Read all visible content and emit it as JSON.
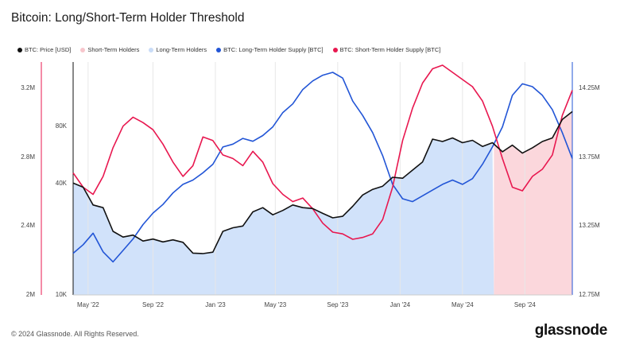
{
  "title": "Bitcoin: Long/Short-Term Holder Threshold",
  "legend": [
    {
      "label": "BTC: Price [USD]",
      "color": "#111111"
    },
    {
      "label": "Short-Term Holders",
      "color": "#f7c6cc"
    },
    {
      "label": "Long-Term Holders",
      "color": "#c9dcf7"
    },
    {
      "label": "BTC: Long-Term Holder Supply [BTC]",
      "color": "#2255d6"
    },
    {
      "label": "BTC: Short-Term Holder Supply [BTC]",
      "color": "#e8174f"
    }
  ],
  "footer": "© 2024 Glassnode. All Rights Reserved.",
  "brand": "glassnode",
  "chart_data": {
    "type": "line",
    "x_ticks": [
      "May '22",
      "Sep '22",
      "Jan '23",
      "May '23",
      "Sep '23",
      "Jan '24",
      "May '24",
      "Sep '24"
    ],
    "y_left_outer_ticks": [
      "3.2M",
      "2.8M",
      "2.4M",
      "2M"
    ],
    "y_left_inner_ticks": [
      "80K",
      "40K",
      "10K"
    ],
    "y_right_ticks": [
      "14.25M",
      "13.75M",
      "13.25M",
      "12.75M"
    ],
    "y_right_range": [
      12.75,
      14.25
    ],
    "y_left_outer_range": [
      2.0,
      3.2
    ],
    "y_price_log_range": [
      10000,
      80000
    ],
    "y_units": {
      "supply": "M BTC",
      "price": "USD"
    },
    "background_regions": [
      {
        "name": "Long-Term Holders",
        "from": 0.0,
        "to": 0.843,
        "color": "#cfe0fa"
      },
      {
        "name": "Short-Term Holders",
        "from": 0.843,
        "to": 1.0,
        "color": "#fbd5da"
      }
    ],
    "series": [
      {
        "name": "BTC: Price [USD]",
        "color": "#111111",
        "axis": "price",
        "values": [
          [
            0.0,
            40000
          ],
          [
            0.02,
            38000
          ],
          [
            0.04,
            30500
          ],
          [
            0.06,
            29500
          ],
          [
            0.08,
            22000
          ],
          [
            0.1,
            20500
          ],
          [
            0.12,
            21000
          ],
          [
            0.14,
            19500
          ],
          [
            0.16,
            20000
          ],
          [
            0.18,
            19300
          ],
          [
            0.2,
            19800
          ],
          [
            0.22,
            19200
          ],
          [
            0.24,
            16800
          ],
          [
            0.26,
            16700
          ],
          [
            0.28,
            17000
          ],
          [
            0.3,
            22000
          ],
          [
            0.32,
            23000
          ],
          [
            0.34,
            23500
          ],
          [
            0.36,
            28000
          ],
          [
            0.38,
            29500
          ],
          [
            0.4,
            27000
          ],
          [
            0.42,
            28500
          ],
          [
            0.44,
            30500
          ],
          [
            0.46,
            29500
          ],
          [
            0.48,
            29200
          ],
          [
            0.5,
            27500
          ],
          [
            0.52,
            26000
          ],
          [
            0.54,
            26500
          ],
          [
            0.56,
            30000
          ],
          [
            0.58,
            34500
          ],
          [
            0.6,
            37000
          ],
          [
            0.62,
            38500
          ],
          [
            0.64,
            43000
          ],
          [
            0.66,
            42500
          ],
          [
            0.68,
            47000
          ],
          [
            0.7,
            52000
          ],
          [
            0.72,
            69000
          ],
          [
            0.74,
            67000
          ],
          [
            0.76,
            70000
          ],
          [
            0.78,
            66000
          ],
          [
            0.8,
            68000
          ],
          [
            0.82,
            63000
          ],
          [
            0.84,
            66000
          ],
          [
            0.86,
            59000
          ],
          [
            0.88,
            64000
          ],
          [
            0.9,
            58000
          ],
          [
            0.92,
            62000
          ],
          [
            0.94,
            67000
          ],
          [
            0.96,
            70000
          ],
          [
            0.98,
            88000
          ],
          [
            1.0,
            97000
          ]
        ]
      },
      {
        "name": "BTC: Long-Term Holder Supply [BTC]",
        "color": "#2255d6",
        "axis": "supply",
        "values": [
          [
            0.0,
            13.04
          ],
          [
            0.02,
            13.1
          ],
          [
            0.04,
            13.18
          ],
          [
            0.06,
            13.05
          ],
          [
            0.08,
            12.98
          ],
          [
            0.1,
            13.06
          ],
          [
            0.12,
            13.14
          ],
          [
            0.14,
            13.24
          ],
          [
            0.16,
            13.32
          ],
          [
            0.18,
            13.38
          ],
          [
            0.2,
            13.46
          ],
          [
            0.22,
            13.52
          ],
          [
            0.24,
            13.55
          ],
          [
            0.26,
            13.6
          ],
          [
            0.28,
            13.66
          ],
          [
            0.3,
            13.78
          ],
          [
            0.32,
            13.8
          ],
          [
            0.34,
            13.84
          ],
          [
            0.36,
            13.82
          ],
          [
            0.38,
            13.86
          ],
          [
            0.4,
            13.92
          ],
          [
            0.42,
            14.02
          ],
          [
            0.44,
            14.08
          ],
          [
            0.46,
            14.18
          ],
          [
            0.48,
            14.24
          ],
          [
            0.5,
            14.28
          ],
          [
            0.52,
            14.3
          ],
          [
            0.54,
            14.26
          ],
          [
            0.56,
            14.1
          ],
          [
            0.58,
            14.0
          ],
          [
            0.6,
            13.88
          ],
          [
            0.62,
            13.72
          ],
          [
            0.64,
            13.52
          ],
          [
            0.66,
            13.42
          ],
          [
            0.68,
            13.4
          ],
          [
            0.7,
            13.44
          ],
          [
            0.72,
            13.48
          ],
          [
            0.74,
            13.52
          ],
          [
            0.76,
            13.55
          ],
          [
            0.78,
            13.52
          ],
          [
            0.8,
            13.56
          ],
          [
            0.82,
            13.66
          ],
          [
            0.84,
            13.78
          ],
          [
            0.86,
            13.92
          ],
          [
            0.88,
            14.14
          ],
          [
            0.9,
            14.22
          ],
          [
            0.92,
            14.2
          ],
          [
            0.94,
            14.14
          ],
          [
            0.96,
            14.04
          ],
          [
            0.98,
            13.88
          ],
          [
            1.0,
            13.7
          ]
        ]
      },
      {
        "name": "BTC: Short-Term Holder Supply [BTC]",
        "color": "#e8174f",
        "axis": "left_outer",
        "values": [
          [
            0.0,
            2.68
          ],
          [
            0.02,
            2.6
          ],
          [
            0.04,
            2.56
          ],
          [
            0.06,
            2.66
          ],
          [
            0.08,
            2.82
          ],
          [
            0.1,
            2.94
          ],
          [
            0.12,
            2.99
          ],
          [
            0.14,
            2.96
          ],
          [
            0.16,
            2.92
          ],
          [
            0.18,
            2.84
          ],
          [
            0.2,
            2.74
          ],
          [
            0.22,
            2.66
          ],
          [
            0.24,
            2.72
          ],
          [
            0.26,
            2.88
          ],
          [
            0.28,
            2.86
          ],
          [
            0.3,
            2.78
          ],
          [
            0.32,
            2.76
          ],
          [
            0.34,
            2.72
          ],
          [
            0.36,
            2.8
          ],
          [
            0.38,
            2.74
          ],
          [
            0.4,
            2.62
          ],
          [
            0.42,
            2.56
          ],
          [
            0.44,
            2.52
          ],
          [
            0.46,
            2.54
          ],
          [
            0.48,
            2.48
          ],
          [
            0.5,
            2.4
          ],
          [
            0.52,
            2.35
          ],
          [
            0.54,
            2.34
          ],
          [
            0.56,
            2.31
          ],
          [
            0.58,
            2.32
          ],
          [
            0.6,
            2.34
          ],
          [
            0.62,
            2.42
          ],
          [
            0.64,
            2.6
          ],
          [
            0.66,
            2.86
          ],
          [
            0.68,
            3.04
          ],
          [
            0.7,
            3.18
          ],
          [
            0.72,
            3.26
          ],
          [
            0.74,
            3.28
          ],
          [
            0.76,
            3.24
          ],
          [
            0.78,
            3.2
          ],
          [
            0.8,
            3.16
          ],
          [
            0.82,
            3.08
          ],
          [
            0.84,
            2.94
          ],
          [
            0.86,
            2.76
          ],
          [
            0.88,
            2.6
          ],
          [
            0.9,
            2.58
          ],
          [
            0.92,
            2.66
          ],
          [
            0.94,
            2.7
          ],
          [
            0.96,
            2.78
          ],
          [
            0.98,
            3.0
          ],
          [
            1.0,
            3.14
          ]
        ]
      }
    ]
  }
}
